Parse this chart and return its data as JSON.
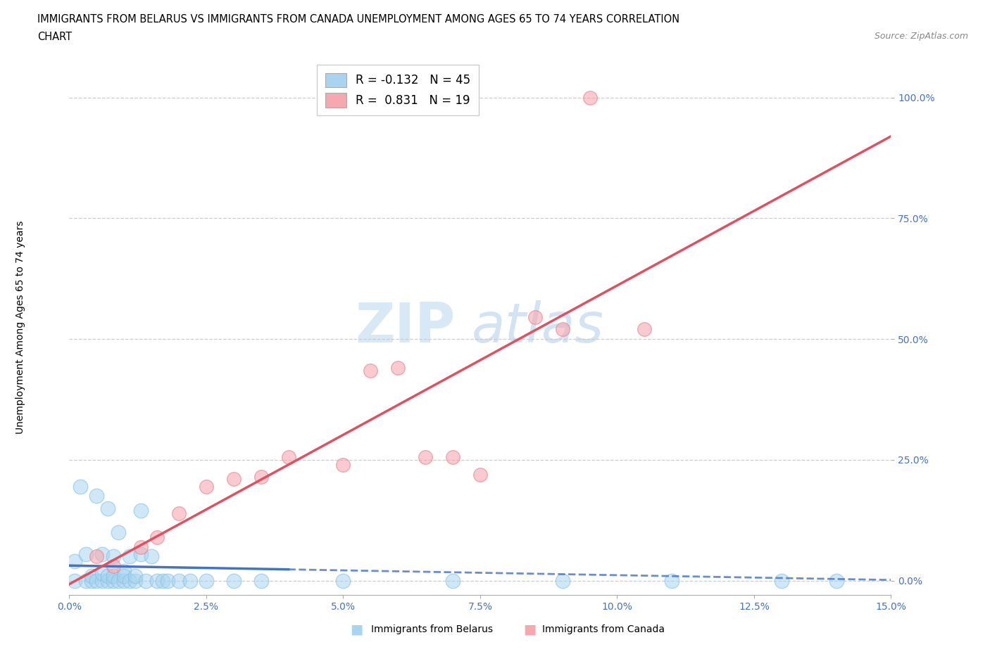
{
  "title_line1": "IMMIGRANTS FROM BELARUS VS IMMIGRANTS FROM CANADA UNEMPLOYMENT AMONG AGES 65 TO 74 YEARS CORRELATION",
  "title_line2": "CHART",
  "source": "Source: ZipAtlas.com",
  "xlabel_ticks": [
    "0.0%",
    "2.5%",
    "5.0%",
    "7.5%",
    "10.0%",
    "12.5%",
    "15.0%"
  ],
  "xlabel_vals": [
    0.0,
    0.025,
    0.05,
    0.075,
    0.1,
    0.125,
    0.15
  ],
  "ylabel_ticks": [
    "0.0%",
    "25.0%",
    "50.0%",
    "75.0%",
    "100.0%"
  ],
  "ylabel_vals": [
    0.0,
    0.25,
    0.5,
    0.75,
    1.0
  ],
  "xlim": [
    0.0,
    0.15
  ],
  "ylim": [
    -0.03,
    1.08
  ],
  "belarus_color": "#A8D4F0",
  "canada_color": "#F5A8B0",
  "belarus_edge_color": "#85BEE0",
  "canada_edge_color": "#E8808A",
  "belarus_line_color": "#4472C4",
  "canada_line_color": "#E05060",
  "belarus_R": -0.132,
  "belarus_N": 45,
  "canada_R": 0.831,
  "canada_N": 19,
  "ylabel": "Unemployment Among Ages 65 to 74 years",
  "watermark_zip": "ZIP",
  "watermark_atlas": "atlas",
  "tick_color": "#4472C4",
  "belarus_x": [
    0.001,
    0.001,
    0.002,
    0.003,
    0.003,
    0.004,
    0.004,
    0.005,
    0.005,
    0.006,
    0.006,
    0.006,
    0.007,
    0.007,
    0.007,
    0.008,
    0.008,
    0.008,
    0.009,
    0.009,
    0.01,
    0.01,
    0.01,
    0.011,
    0.011,
    0.012,
    0.012,
    0.013,
    0.013,
    0.014,
    0.015,
    0.016,
    0.017,
    0.018,
    0.02,
    0.022,
    0.025,
    0.03,
    0.035,
    0.05,
    0.07,
    0.09,
    0.11,
    0.13,
    0.14
  ],
  "belarus_y": [
    0.04,
    0.0,
    0.195,
    0.0,
    0.055,
    0.0,
    0.01,
    0.175,
    0.0,
    0.055,
    0.0,
    0.015,
    0.0,
    0.15,
    0.01,
    0.05,
    0.0,
    0.01,
    0.0,
    0.1,
    0.0,
    0.02,
    0.01,
    0.05,
    0.0,
    0.0,
    0.01,
    0.055,
    0.145,
    0.0,
    0.05,
    0.0,
    0.0,
    0.0,
    0.0,
    0.0,
    0.0,
    0.0,
    0.0,
    0.0,
    0.0,
    0.0,
    0.0,
    0.0,
    0.0
  ],
  "canada_x": [
    0.005,
    0.008,
    0.013,
    0.016,
    0.02,
    0.025,
    0.03,
    0.035,
    0.04,
    0.05,
    0.055,
    0.06,
    0.065,
    0.07,
    0.075,
    0.085,
    0.09,
    0.095,
    0.105
  ],
  "canada_y": [
    0.05,
    0.03,
    0.07,
    0.09,
    0.14,
    0.195,
    0.21,
    0.215,
    0.255,
    0.24,
    0.435,
    0.44,
    0.255,
    0.255,
    0.22,
    0.545,
    0.52,
    1.0,
    0.52
  ]
}
